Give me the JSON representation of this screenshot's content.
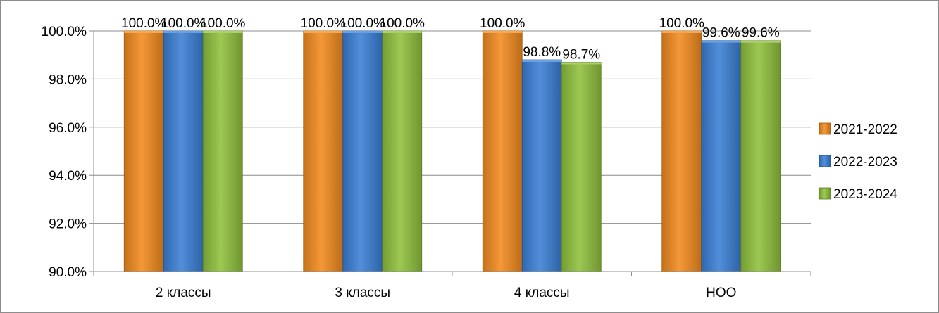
{
  "chart_data": {
    "type": "bar",
    "title": "",
    "xlabel": "",
    "ylabel": "",
    "categories": [
      "2 классы",
      "3 классы",
      "4 классы",
      "НОО"
    ],
    "series": [
      {
        "name": "2021-2022",
        "color": "#f28a1e",
        "values": [
          100.0,
          100.0,
          100.0,
          100.0
        ],
        "labels": [
          "100.0%",
          "100.0%",
          "100.0%",
          "100.0%"
        ]
      },
      {
        "name": "2022-2023",
        "color": "#3a7fd5",
        "values": [
          100.0,
          100.0,
          98.8,
          99.6
        ],
        "labels": [
          "100.0%",
          "100.0%",
          "98.8%",
          "99.6%"
        ]
      },
      {
        "name": "2023-2024",
        "color": "#8fc03c",
        "values": [
          100.0,
          100.0,
          98.7,
          99.6
        ],
        "labels": [
          "100.0%",
          "100.0%",
          "98.7%",
          "99.6%"
        ]
      }
    ],
    "ylim": [
      90.0,
      100.0
    ],
    "yticks": [
      90.0,
      92.0,
      94.0,
      96.0,
      98.0,
      100.0
    ],
    "ytick_labels": [
      "90.0%",
      "92.0%",
      "94.0%",
      "96.0%",
      "98.0%",
      "100.0%"
    ],
    "grid": true,
    "legend_position": "right"
  }
}
